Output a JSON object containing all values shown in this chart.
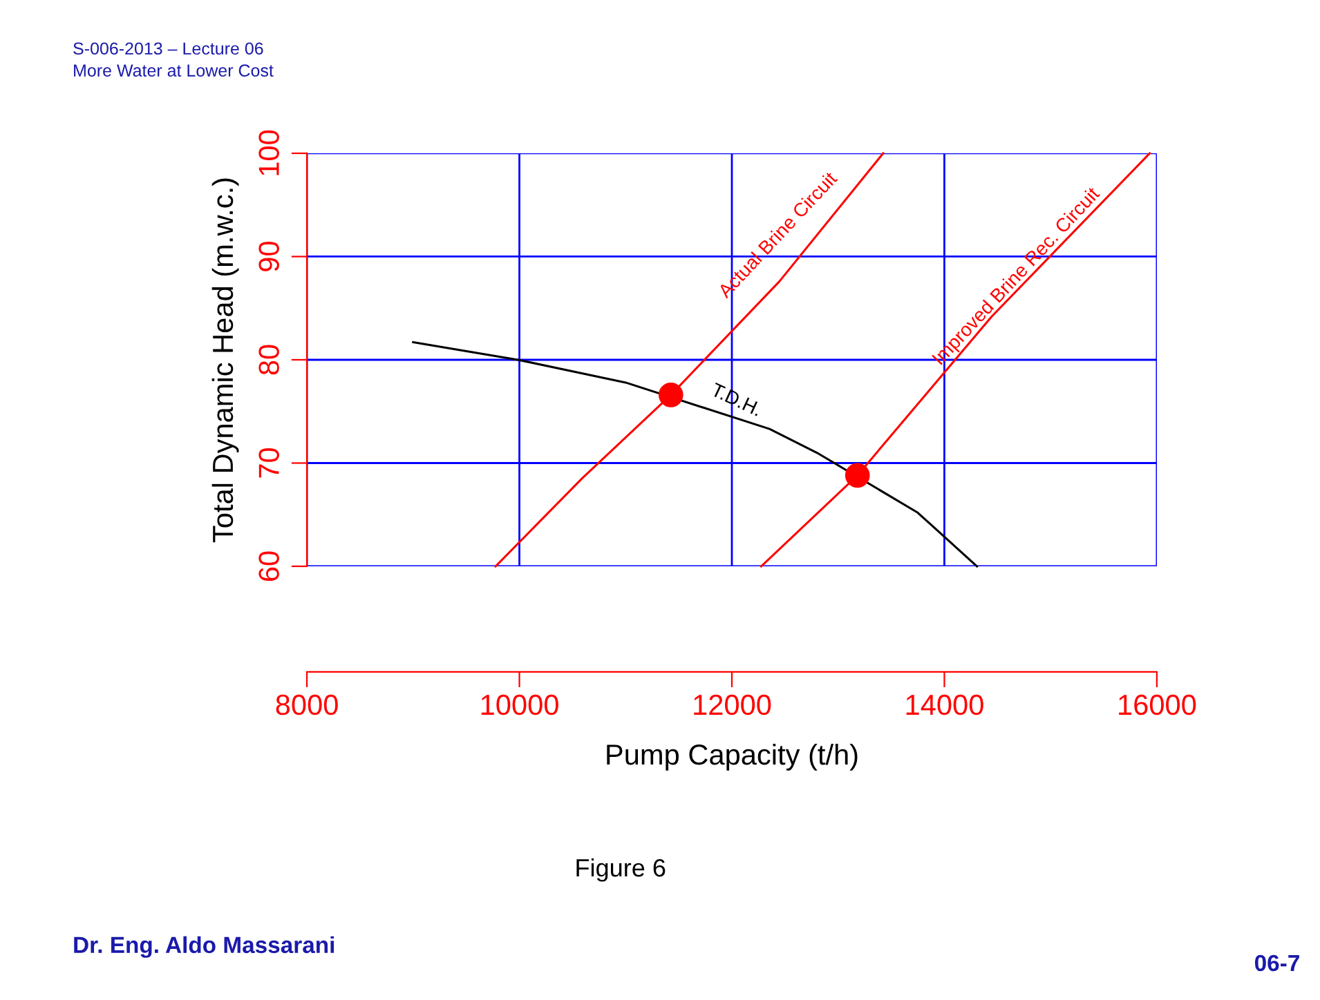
{
  "chart_data": {
    "type": "line",
    "xlabel": "Pump Capacity (t/h)",
    "ylabel": "Total Dynamic Head (m.w.c.)",
    "xlim": [
      8000,
      16000
    ],
    "xticks": [
      8000,
      10000,
      12000,
      14000,
      16000
    ],
    "ylim": [
      60,
      100
    ],
    "yticks": [
      60,
      70,
      80,
      90,
      100
    ],
    "grid": true,
    "series": [
      {
        "color": "#ff0000",
        "x": [
          9776,
          10589,
          11426,
          12448,
          13424
        ],
        "values": [
          60,
          68.5,
          76.6,
          87.6,
          100
        ]
      },
      {
        "color": "#ff0000",
        "x": [
          12276,
          13182,
          14446,
          15933
        ],
        "values": [
          60,
          68.8,
          84.2,
          100
        ]
      },
      {
        "color": "#000000",
        "x": [
          9000,
          9985,
          11000,
          12355,
          12800,
          13749,
          14307
        ],
        "values": [
          81.7,
          80.0,
          77.8,
          73.3,
          71.0,
          65.2,
          60
        ]
      },
      {
        "type": "scatter",
        "color": "#ff0000",
        "marker": "circle",
        "x": [
          11426,
          13182
        ],
        "values": [
          76.6,
          68.8
        ]
      }
    ],
    "annotations": [
      "Actual Brine Circuit",
      "Improved Brine Rec. Circuit",
      "T.D.H.",
      "S-006-2013 – Lecture 06",
      "More Water at Lower Cost",
      "Figure 6",
      "Dr. Eng. Aldo Massarani",
      "06-7"
    ]
  }
}
